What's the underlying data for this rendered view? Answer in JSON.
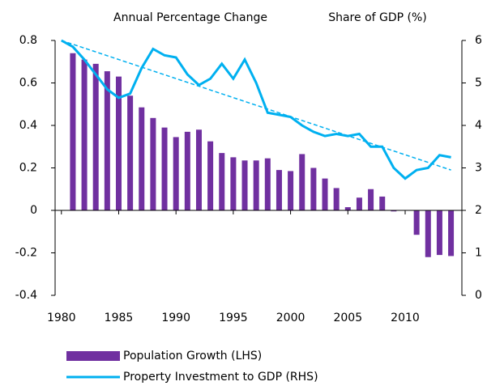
{
  "chart_data": {
    "type": "bar-line",
    "left_axis_title": "Annual Percentage Change",
    "right_axis_title": "Share of GDP (%)",
    "xlim": [
      1979.45,
      2014.95
    ],
    "xticks": [
      1980,
      1985,
      1990,
      1995,
      2000,
      2005,
      2010
    ],
    "ylim": [
      -0.4,
      0.8
    ],
    "yticks": [
      -0.4,
      -0.2,
      0,
      0.2,
      0.4,
      0.6,
      0.8
    ],
    "y2lim": [
      0,
      6
    ],
    "y2ticks": [
      0,
      1,
      2,
      3,
      4,
      5,
      6
    ],
    "series": [
      {
        "name": "Population Growth (LHS)",
        "type": "bar",
        "color": "#7030a0",
        "x": [
          1981,
          1982,
          1983,
          1984,
          1985,
          1986,
          1987,
          1988,
          1989,
          1990,
          1991,
          1992,
          1993,
          1994,
          1995,
          1996,
          1997,
          1998,
          1999,
          2000,
          2001,
          2002,
          2003,
          2004,
          2005,
          2006,
          2007,
          2008,
          2009,
          2010,
          2011,
          2012,
          2013,
          2014
        ],
        "values": [
          0.74,
          0.71,
          0.69,
          0.655,
          0.63,
          0.54,
          0.485,
          0.435,
          0.39,
          0.345,
          0.37,
          0.38,
          0.325,
          0.27,
          0.25,
          0.235,
          0.235,
          0.245,
          0.19,
          0.185,
          0.265,
          0.2,
          0.15,
          0.105,
          0.015,
          0.06,
          0.1,
          0.065,
          -0.005,
          0,
          -0.115,
          -0.22,
          -0.21,
          -0.215
        ]
      },
      {
        "name": "Property Investment to GDP (RHS)",
        "type": "line",
        "axis": "y2",
        "color": "#00b0f0",
        "x": [
          1980,
          1981,
          1982,
          1983,
          1984,
          1985,
          1986,
          1987,
          1988,
          1989,
          1990,
          1991,
          1992,
          1993,
          1994,
          1995,
          1996,
          1997,
          1998,
          1999,
          2000,
          2001,
          2002,
          2003,
          2004,
          2005,
          2006,
          2007,
          2008,
          2009,
          2010,
          2011,
          2012,
          2013,
          2014
        ],
        "values": [
          6.0,
          5.85,
          5.55,
          5.2,
          4.85,
          4.65,
          4.75,
          5.35,
          5.8,
          5.65,
          5.6,
          5.2,
          4.95,
          5.1,
          5.45,
          5.1,
          5.55,
          5.0,
          4.3,
          4.25,
          4.2,
          4.0,
          3.85,
          3.75,
          3.8,
          3.75,
          3.8,
          3.5,
          3.5,
          3.0,
          2.75,
          2.95,
          3.0,
          3.3,
          3.25
        ]
      },
      {
        "type": "trend",
        "axis": "y2",
        "color": "#00b0f0",
        "dashed": true,
        "x": [
          1980,
          2014
        ],
        "values": [
          6.0,
          2.95
        ]
      }
    ]
  }
}
